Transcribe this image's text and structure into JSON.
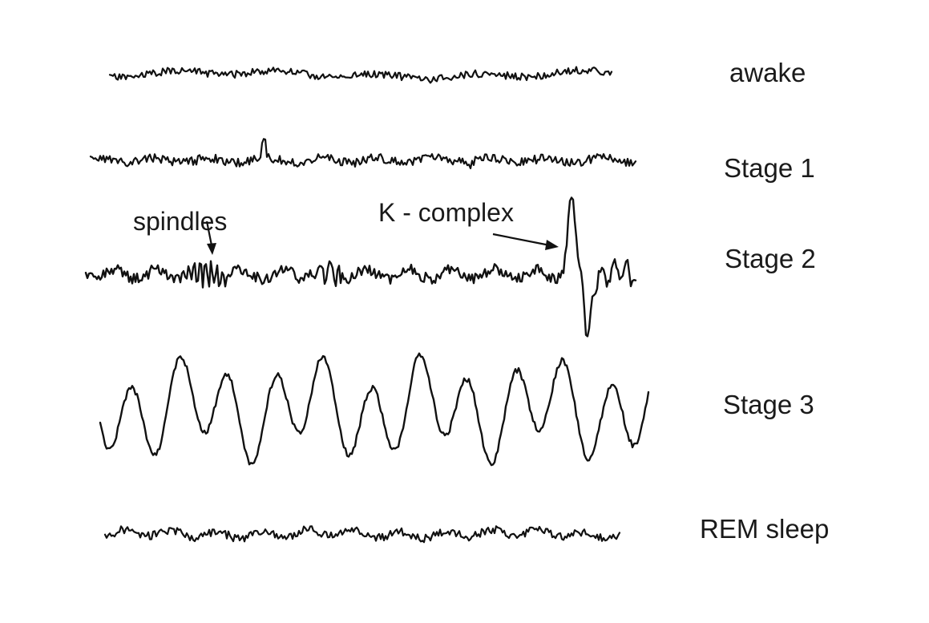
{
  "stages": [
    {
      "id": "awake",
      "label": "awake"
    },
    {
      "id": "stage1",
      "label": "Stage 1"
    },
    {
      "id": "stage2",
      "label": "Stage 2"
    },
    {
      "id": "stage3",
      "label": "Stage 3"
    },
    {
      "id": "rem",
      "label": "REM sleep"
    }
  ],
  "annotations": {
    "spindles": "spindles",
    "k_complex": "K - complex"
  }
}
